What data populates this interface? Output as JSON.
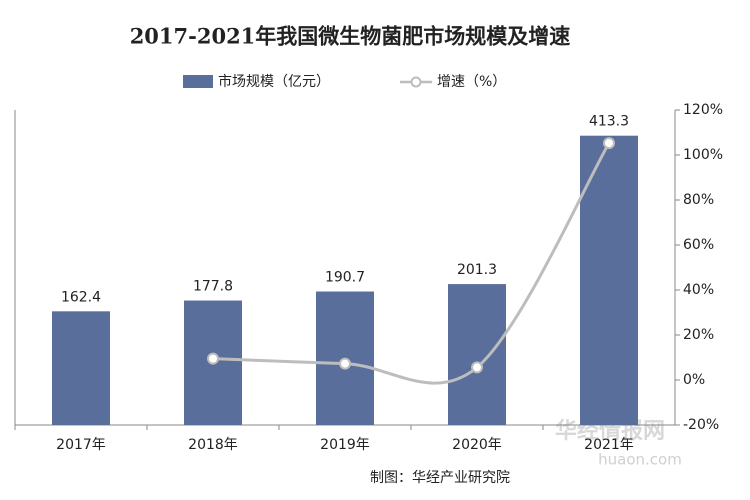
{
  "chart_data": {
    "type": "bar-line",
    "title": "2017-2021年我国微生物菌肥市场规模及增速",
    "categories": [
      "2017年",
      "2018年",
      "2019年",
      "2020年",
      "2021年"
    ],
    "series": [
      {
        "name": "市场规模（亿元）",
        "type": "bar",
        "color": "#5a6e9c",
        "values": [
          162.4,
          177.8,
          190.7,
          201.3,
          413.3
        ]
      },
      {
        "name": "增速（%）",
        "type": "line",
        "axis": "y2",
        "color": "#bdbdbd",
        "values": [
          null,
          9.5,
          7.3,
          5.6,
          105.3
        ]
      }
    ],
    "ylim": [
      0,
      450
    ],
    "y2lim": [
      -20,
      120
    ],
    "y2ticks": [
      {
        "value": -20,
        "label": "-20%"
      },
      {
        "value": 0,
        "label": "0%"
      },
      {
        "value": 20,
        "label": "20%"
      },
      {
        "value": 40,
        "label": "40%"
      },
      {
        "value": 60,
        "label": "60%"
      },
      {
        "value": 80,
        "label": "80%"
      },
      {
        "value": 100,
        "label": "100%"
      },
      {
        "value": 120,
        "label": "120%"
      }
    ],
    "source": "制图：华经产业研究院",
    "watermark": [
      "华经情报网",
      "huaon.com"
    ]
  }
}
